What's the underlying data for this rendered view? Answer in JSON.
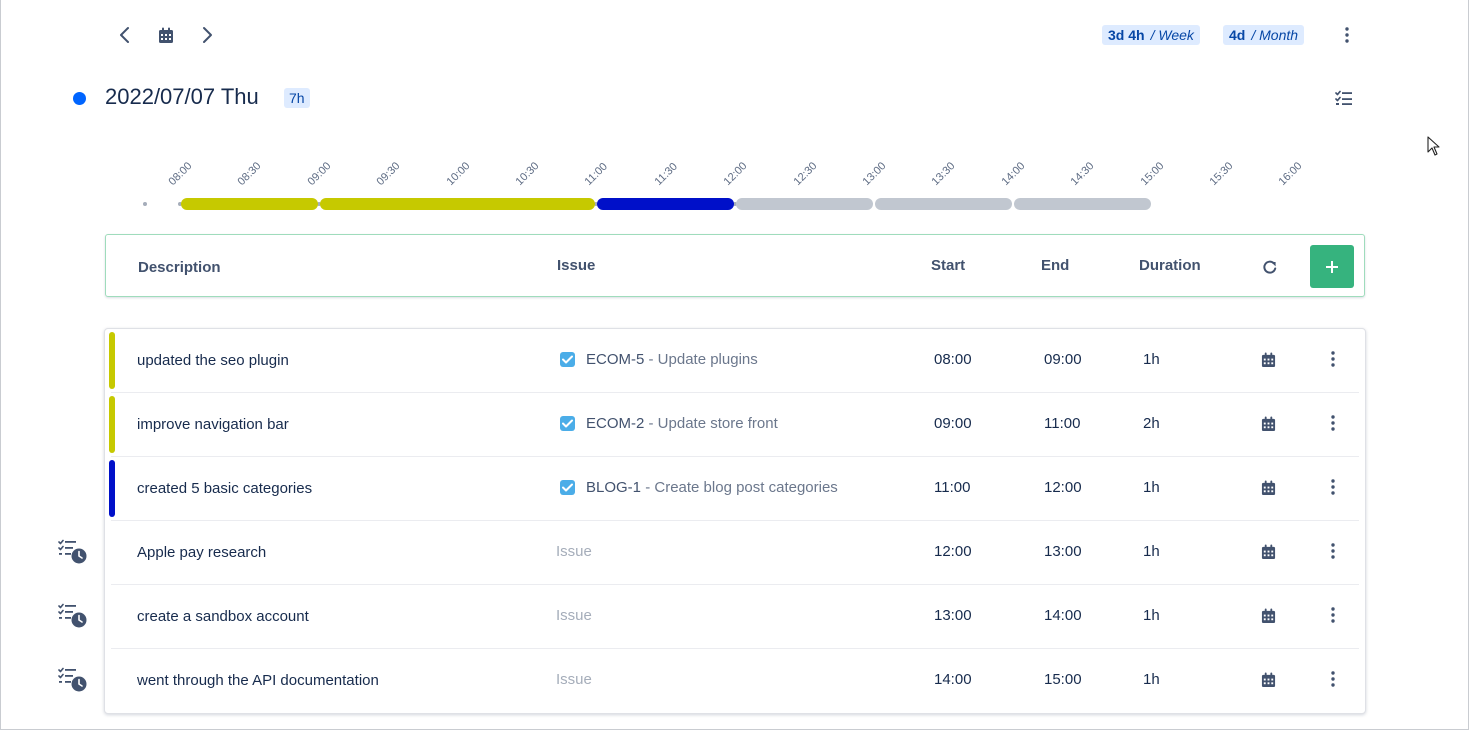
{
  "nav": {
    "prev_icon": "chevron-left-icon",
    "calendar_icon": "calendar-icon",
    "next_icon": "chevron-right-icon"
  },
  "summary": {
    "week_value": "3d 4h",
    "week_unit": "/ Week",
    "month_value": "4d",
    "month_unit": "/ Month"
  },
  "day": {
    "title": "2022/07/07 Thu",
    "total": "7h",
    "dot_color": "#0065ff"
  },
  "timeline": {
    "ticks": [
      "08:00",
      "08:30",
      "09:00",
      "09:30",
      "10:00",
      "10:30",
      "11:00",
      "11:30",
      "12:00",
      "12:30",
      "13:00",
      "13:30",
      "14:00",
      "14:30",
      "15:00",
      "15:30",
      "16:00"
    ],
    "segments": [
      {
        "start": "08:00",
        "end": "09:00",
        "color": "#c6c900"
      },
      {
        "start": "09:00",
        "end": "11:00",
        "color": "#c6c900"
      },
      {
        "start": "11:00",
        "end": "12:00",
        "color": "#0010c9"
      },
      {
        "start": "12:00",
        "end": "13:00",
        "color": "#c1c7d0"
      },
      {
        "start": "13:00",
        "end": "14:00",
        "color": "#c1c7d0"
      },
      {
        "start": "14:00",
        "end": "15:00",
        "color": "#c1c7d0"
      }
    ]
  },
  "table": {
    "headers": {
      "description": "Description",
      "issue": "Issue",
      "start": "Start",
      "end": "End",
      "duration": "Duration"
    },
    "issue_placeholder": "Issue",
    "rows": [
      {
        "description": "updated the seo plugin",
        "issue_key": "ECOM-5",
        "issue_summary": "- Update plugins",
        "start": "08:00",
        "end": "09:00",
        "duration": "1h",
        "color": "#c6c900",
        "logged": true
      },
      {
        "description": "improve navigation bar",
        "issue_key": "ECOM-2",
        "issue_summary": "- Update store front",
        "start": "09:00",
        "end": "11:00",
        "duration": "2h",
        "color": "#c6c900",
        "logged": true
      },
      {
        "description": "created 5 basic categories",
        "issue_key": "BLOG-1",
        "issue_summary": "- Create blog post categories",
        "start": "11:00",
        "end": "12:00",
        "duration": "1h",
        "color": "#0010c9",
        "logged": true
      },
      {
        "description": "Apple pay research",
        "issue_key": "",
        "issue_summary": "",
        "start": "12:00",
        "end": "13:00",
        "duration": "1h",
        "color": "",
        "logged": false
      },
      {
        "description": "create a sandbox account",
        "issue_key": "",
        "issue_summary": "",
        "start": "13:00",
        "end": "14:00",
        "duration": "1h",
        "color": "",
        "logged": false
      },
      {
        "description": "went through the API documentation",
        "issue_key": "",
        "issue_summary": "",
        "start": "14:00",
        "end": "15:00",
        "duration": "1h",
        "color": "",
        "logged": false
      }
    ]
  },
  "colors": {
    "accent": "#0065ff",
    "add_button": "#36b37e",
    "issue_checkbox": "#4bade8"
  }
}
